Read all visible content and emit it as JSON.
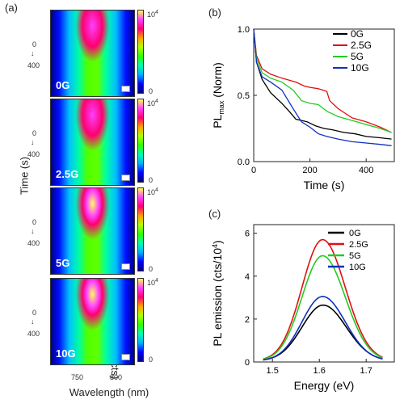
{
  "panel_a": {
    "label": "(a)",
    "ylabel": "Time (s)",
    "xlabel": "Wavelength (nm)",
    "colorbar_label": "Intensity (cts)",
    "x_ticks": [
      "750",
      "800"
    ],
    "y_ticks": [
      "0",
      "↓",
      "400"
    ],
    "colorbar_ticks": {
      "top": "10",
      "exp": "4",
      "bottom": "0"
    },
    "maps": [
      {
        "label": "0G",
        "hot_core": false
      },
      {
        "label": "2.5G",
        "hot_core": false
      },
      {
        "label": "5G",
        "hot_core": true
      },
      {
        "label": "10G",
        "hot_core": true
      }
    ]
  },
  "panel_b_label": "(b)",
  "panel_c_label": "(c)",
  "chart_data": [
    {
      "type": "line",
      "title": "",
      "xlabel": "Time (s)",
      "ylabel": "PL",
      "ylabel_sub": "max",
      "ylabel_suffix": " (Norm)",
      "xlim": [
        0,
        500
      ],
      "ylim": [
        0.0,
        1.0
      ],
      "xticks": [
        0,
        200,
        400
      ],
      "yticks": [
        0.0,
        0.5,
        1.0
      ],
      "ytick_labels": [
        "0.0",
        "0.5",
        "1.0"
      ],
      "legend_position": "top-right",
      "series": [
        {
          "name": "0G",
          "color": "#000000",
          "x": [
            0,
            10,
            30,
            60,
            100,
            130,
            150,
            170,
            190,
            220,
            250,
            280,
            320,
            360,
            400,
            450,
            490
          ],
          "y": [
            1.0,
            0.75,
            0.62,
            0.52,
            0.44,
            0.37,
            0.32,
            0.31,
            0.3,
            0.27,
            0.25,
            0.24,
            0.22,
            0.21,
            0.19,
            0.18,
            0.17
          ]
        },
        {
          "name": "2.5G",
          "color": "#e01010",
          "x": [
            0,
            10,
            30,
            60,
            100,
            150,
            180,
            200,
            230,
            260,
            270,
            300,
            350,
            400,
            450,
            490
          ],
          "y": [
            1.0,
            0.8,
            0.7,
            0.66,
            0.63,
            0.6,
            0.57,
            0.56,
            0.55,
            0.53,
            0.46,
            0.4,
            0.33,
            0.3,
            0.26,
            0.22
          ]
        },
        {
          "name": "5G",
          "color": "#22cc22",
          "x": [
            0,
            10,
            30,
            60,
            100,
            140,
            170,
            200,
            230,
            260,
            300,
            350,
            400,
            450,
            490
          ],
          "y": [
            1.0,
            0.78,
            0.67,
            0.63,
            0.6,
            0.54,
            0.46,
            0.44,
            0.43,
            0.38,
            0.34,
            0.31,
            0.28,
            0.25,
            0.22
          ]
        },
        {
          "name": "10G",
          "color": "#1030c0",
          "x": [
            0,
            10,
            30,
            60,
            100,
            140,
            170,
            200,
            230,
            260,
            300,
            350,
            400,
            450,
            490
          ],
          "y": [
            1.0,
            0.75,
            0.64,
            0.6,
            0.54,
            0.4,
            0.3,
            0.26,
            0.21,
            0.19,
            0.17,
            0.15,
            0.14,
            0.13,
            0.12
          ]
        }
      ]
    },
    {
      "type": "line",
      "title": "",
      "xlabel": "Energy (eV)",
      "ylabel": "PL emission (cts/10",
      "ylabel_sup": "4",
      "ylabel_suffix": ")",
      "xlim": [
        1.46,
        1.76
      ],
      "ylim": [
        0,
        6.4
      ],
      "xticks": [
        1.5,
        1.6,
        1.7
      ],
      "xtick_labels": [
        "1.5",
        "1.6",
        "1.7"
      ],
      "yticks": [
        0,
        2,
        4,
        6
      ],
      "legend_position": "top-right",
      "series": [
        {
          "name": "0G",
          "color": "#000000",
          "peak": 2.6,
          "center": 1.608,
          "width": 0.045
        },
        {
          "name": "2.5G",
          "color": "#e01010",
          "peak": 5.65,
          "center": 1.607,
          "width": 0.044
        },
        {
          "name": "5G",
          "color": "#22cc22",
          "peak": 4.9,
          "center": 1.607,
          "width": 0.044
        },
        {
          "name": "10G",
          "color": "#1030c0",
          "peak": 3.0,
          "center": 1.607,
          "width": 0.044
        }
      ]
    }
  ]
}
